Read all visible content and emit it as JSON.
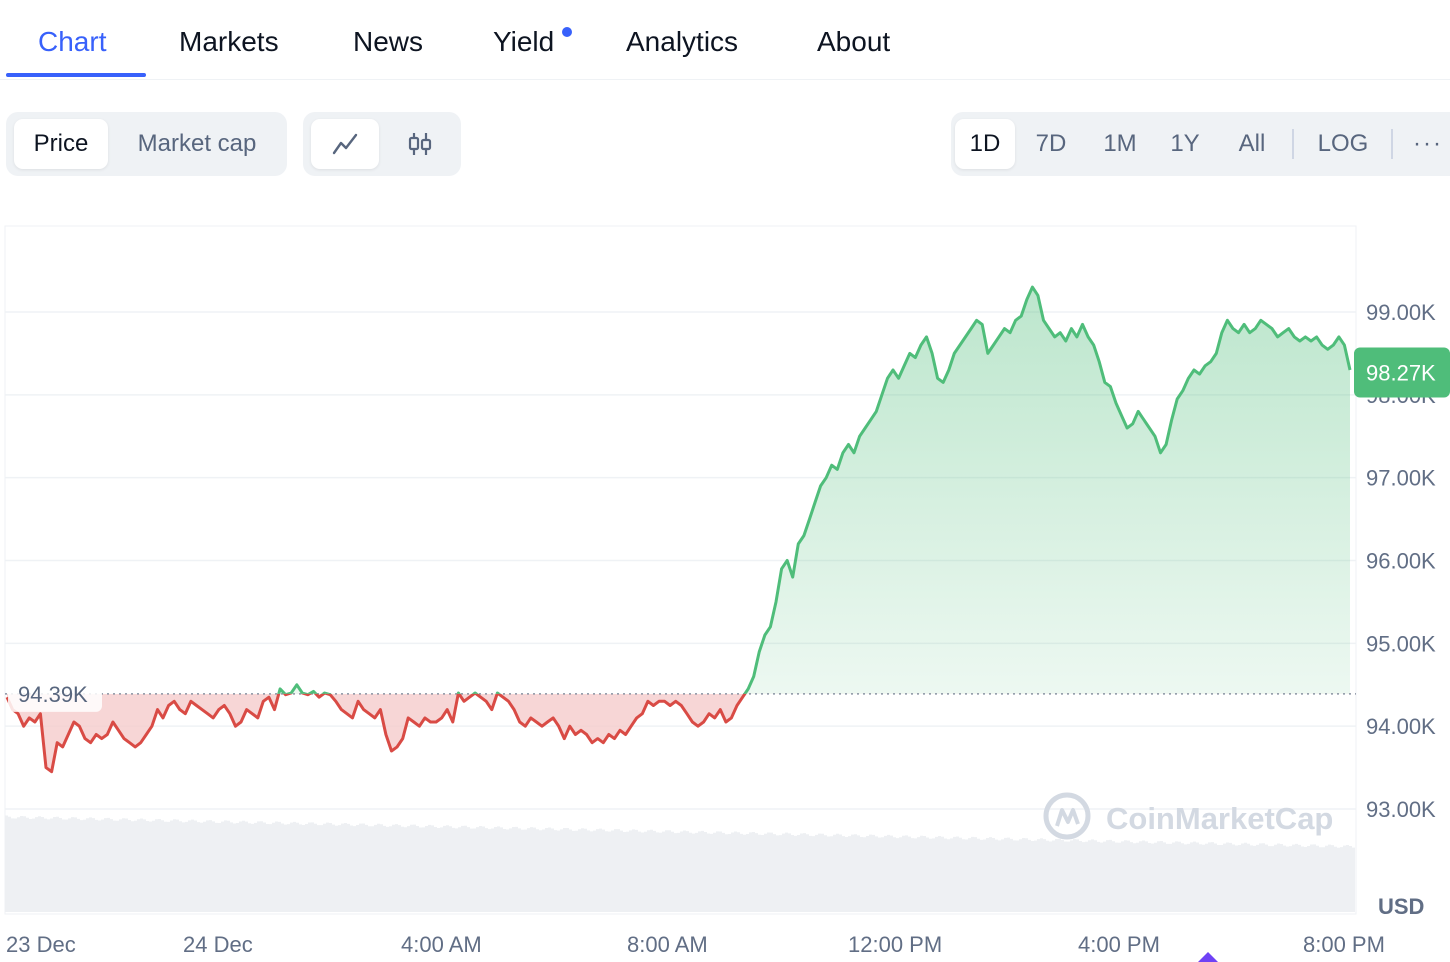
{
  "tabs": [
    {
      "label": "Chart",
      "active": true
    },
    {
      "label": "Markets"
    },
    {
      "label": "News"
    },
    {
      "label": "Yield",
      "has_dot": true
    },
    {
      "label": "Analytics"
    },
    {
      "label": "About"
    }
  ],
  "toolbar": {
    "metric": [
      "Price",
      "Market cap"
    ],
    "metric_selected": "Price",
    "chart_types": [
      "line-chart-icon",
      "candlestick-icon"
    ],
    "chart_type_selected": "line-chart-icon",
    "ranges": [
      "1D",
      "7D",
      "1M",
      "1Y",
      "All"
    ],
    "range_selected": "1D",
    "log_label": "LOG",
    "more_label": "···"
  },
  "watermark": "CoinMarketCap",
  "colors": {
    "accent": "#3861fb",
    "up": "#16c784",
    "up_line": "#4fbd7a",
    "down": "#d94b45",
    "up_fill": "#cdebd6",
    "down_fill": "#f5cccc"
  },
  "chart_data": {
    "type": "area",
    "unit": "USD",
    "ylim": [
      92000,
      100200
    ],
    "y_ticks": [
      "99.00K",
      "98.00K",
      "97.00K",
      "96.00K",
      "95.00K",
      "94.00K",
      "93.00K"
    ],
    "y_tick_values": [
      99000,
      98000,
      97000,
      96000,
      95000,
      94000,
      93000
    ],
    "x_ticks": [
      "23 Dec",
      "24 Dec",
      "4:00 AM",
      "8:00 AM",
      "12:00 PM",
      "4:00 PM",
      "8:00 PM"
    ],
    "baseline_value": 94390,
    "baseline_label": "94.39K",
    "current_value": 98270,
    "current_label": "98.27K",
    "prices": [
      94350,
      94200,
      94150,
      94000,
      94100,
      94050,
      94150,
      93500,
      93450,
      93800,
      93750,
      93900,
      94050,
      94000,
      93850,
      93800,
      93900,
      93850,
      93900,
      94050,
      93950,
      93850,
      93800,
      93750,
      93800,
      93900,
      94000,
      94200,
      94100,
      94250,
      94300,
      94200,
      94150,
      94300,
      94250,
      94200,
      94150,
      94100,
      94200,
      94250,
      94150,
      94000,
      94050,
      94200,
      94150,
      94100,
      94300,
      94350,
      94200,
      94450,
      94380,
      94400,
      94500,
      94400,
      94380,
      94420,
      94350,
      94400,
      94380,
      94300,
      94200,
      94150,
      94100,
      94300,
      94200,
      94150,
      94100,
      94200,
      93900,
      93700,
      93750,
      93850,
      94100,
      94050,
      94000,
      94100,
      94050,
      94050,
      94100,
      94200,
      94050,
      94400,
      94300,
      94350,
      94400,
      94350,
      94300,
      94200,
      94400,
      94350,
      94300,
      94200,
      94050,
      94000,
      94100,
      94050,
      94000,
      94050,
      94100,
      94000,
      93850,
      94000,
      93900,
      93950,
      93900,
      93800,
      93850,
      93800,
      93900,
      93850,
      93950,
      93900,
      94000,
      94100,
      94150,
      94300,
      94250,
      94300,
      94300,
      94250,
      94300,
      94250,
      94150,
      94050,
      94000,
      94050,
      94150,
      94100,
      94200,
      94050,
      94100,
      94250,
      94350,
      94450,
      94600,
      94900,
      95100,
      95200,
      95500,
      95900,
      96000,
      95800,
      96200,
      96300,
      96500,
      96700,
      96900,
      97000,
      97150,
      97100,
      97300,
      97400,
      97300,
      97500,
      97600,
      97700,
      97800,
      98000,
      98200,
      98300,
      98200,
      98350,
      98500,
      98450,
      98600,
      98700,
      98500,
      98200,
      98150,
      98300,
      98500,
      98600,
      98700,
      98800,
      98900,
      98850,
      98500,
      98600,
      98700,
      98800,
      98750,
      98900,
      98950,
      99150,
      99300,
      99200,
      98900,
      98800,
      98700,
      98750,
      98650,
      98800,
      98700,
      98850,
      98700,
      98600,
      98400,
      98150,
      98100,
      97900,
      97750,
      97600,
      97650,
      97800,
      97700,
      97600,
      97500,
      97300,
      97400,
      97700,
      97950,
      98050,
      98200,
      98300,
      98250,
      98350,
      98400,
      98500,
      98750,
      98900,
      98800,
      98750,
      98850,
      98750,
      98800,
      98900,
      98850,
      98800,
      98700,
      98750,
      98800,
      98700,
      98650,
      98700,
      98650,
      98700,
      98600,
      98550,
      98600,
      98700,
      98600,
      98300
    ]
  }
}
